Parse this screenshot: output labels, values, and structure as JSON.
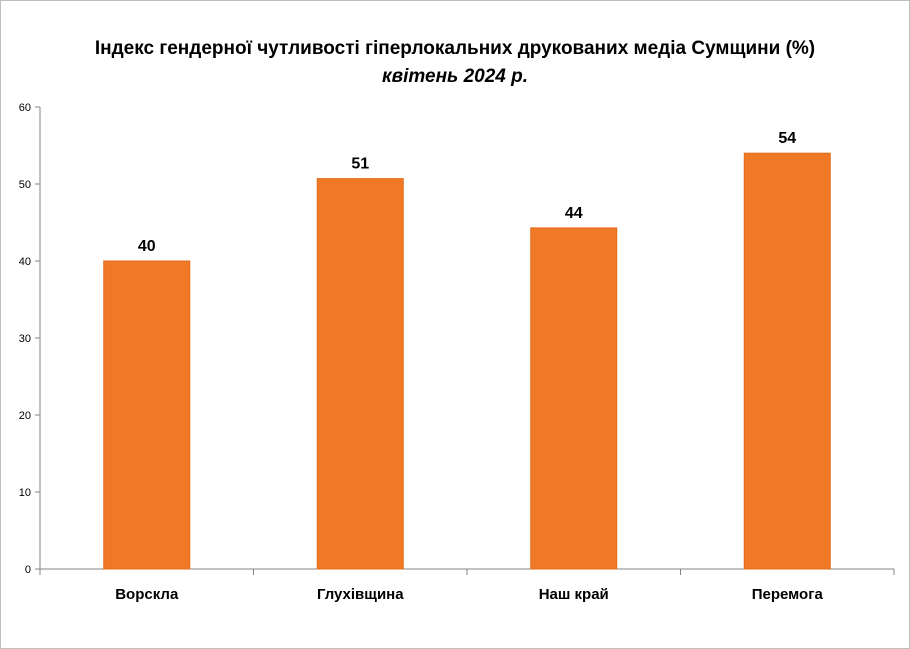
{
  "chart_data": {
    "type": "bar",
    "title": "Індекс гендерної чутливості гіперлокальних друкованих медіа Сумщини (%)",
    "subtitle": "квітень 2024 р.",
    "xlabel": "",
    "ylabel": "",
    "categories": [
      "Ворскла",
      "Глухівщина",
      "Наш край",
      "Перемога"
    ],
    "values": [
      40,
      50.7,
      44.3,
      54
    ],
    "data_labels": [
      "40",
      "51",
      "44",
      "54"
    ],
    "ylim": [
      0,
      60
    ],
    "yticks": [
      0,
      10,
      20,
      30,
      40,
      50,
      60
    ],
    "grid": false,
    "legend": "none",
    "bar_color": "#f07925",
    "bar_edge_color": "#e36c1a",
    "axis_color": "#868686"
  }
}
